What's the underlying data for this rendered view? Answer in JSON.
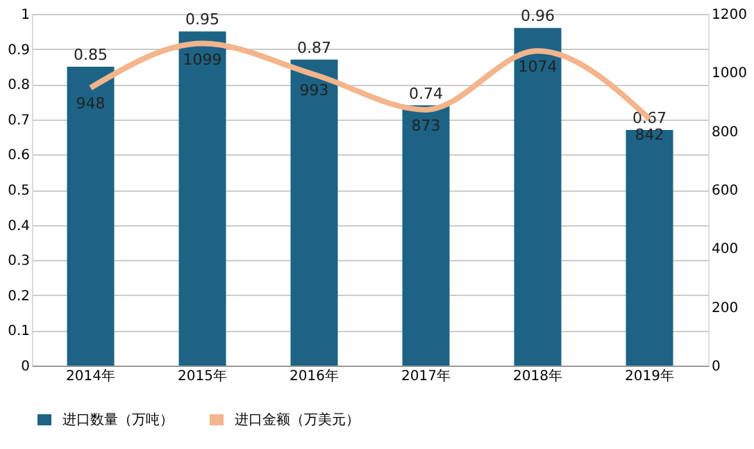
{
  "chart_data": {
    "type": "bar",
    "categories": [
      "2014年",
      "2015年",
      "2016年",
      "2017年",
      "2018年",
      "2019年"
    ],
    "series": [
      {
        "name": "进口数量（万吨）",
        "color": "#1d6385",
        "values": [
          0.85,
          0.95,
          0.87,
          0.74,
          0.96,
          0.67
        ]
      },
      {
        "name": "进口金额（万美元）",
        "type": "line",
        "axis": "y2",
        "color": "#f4b48c",
        "values": [
          948,
          1099,
          993,
          873,
          1074,
          842
        ]
      }
    ],
    "ylim": [
      0,
      1
    ],
    "yticks": [
      0,
      0.1,
      0.2,
      0.3,
      0.4,
      0.5,
      0.6,
      0.7,
      0.8,
      0.9,
      1
    ],
    "y2lim": [
      0,
      1200
    ],
    "y2ticks": [
      0,
      200,
      400,
      600,
      800,
      1000,
      1200
    ],
    "data_labels": true,
    "grid": "y",
    "legend": "bottom"
  }
}
